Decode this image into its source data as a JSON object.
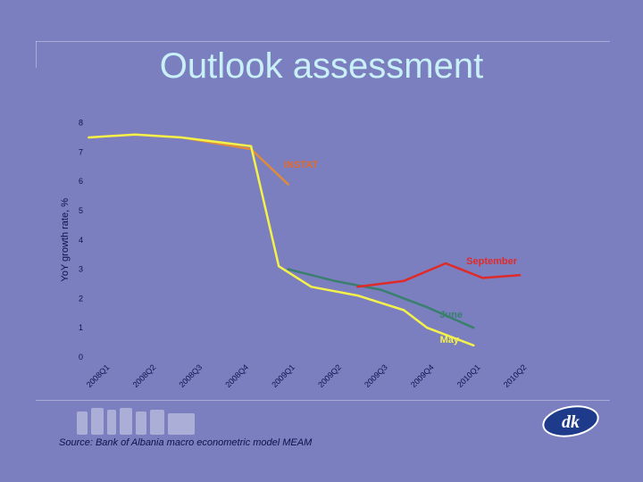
{
  "slide": {
    "title": "Outlook assessment",
    "source": "Source: Bank of Albania macro econometric model MEAM"
  },
  "chart_data": {
    "type": "line",
    "ylabel": "YoY growth rate, %",
    "xlabel": "",
    "ylim": [
      0,
      8
    ],
    "yticks": [
      0,
      1,
      2,
      3,
      4,
      5,
      6,
      7,
      8
    ],
    "categories": [
      "2008Q1",
      "2008Q2",
      "2008Q3",
      "2008Q4",
      "2009Q1",
      "2009Q2",
      "2009Q3",
      "2009Q4",
      "2010Q1",
      "2010Q2"
    ],
    "grid": false,
    "series": [
      {
        "name": "INSTAT",
        "color": "#e08a3a",
        "label_color": "#e36a2a",
        "x": [
          -0.3,
          0.7,
          1.7,
          3.2,
          4.0
        ],
        "values": [
          7.5,
          7.6,
          7.5,
          7.1,
          5.9
        ]
      },
      {
        "name": "June",
        "color": "#3a7f6e",
        "label_color": "#3a7f6e",
        "x": [
          4.0,
          5.0,
          6.0,
          7.0,
          8.0
        ],
        "values": [
          3.0,
          2.6,
          2.3,
          1.7,
          1.0
        ]
      },
      {
        "name": "May",
        "color": "#f4f24a",
        "label_color": "#f4f24a",
        "x": [
          -0.3,
          0.7,
          1.7,
          3.2,
          3.8,
          4.5,
          5.5,
          6.5,
          7.0,
          8.0
        ],
        "values": [
          7.5,
          7.6,
          7.5,
          7.2,
          3.1,
          2.4,
          2.1,
          1.6,
          1.0,
          0.4
        ]
      },
      {
        "name": "September",
        "color": "#e02a2a",
        "label_color": "#e02a2a",
        "x": [
          5.5,
          6.5,
          7.4,
          8.2,
          9.0
        ],
        "values": [
          2.4,
          2.6,
          3.2,
          2.7,
          2.8
        ]
      }
    ]
  },
  "logos": {
    "right": "dk"
  }
}
